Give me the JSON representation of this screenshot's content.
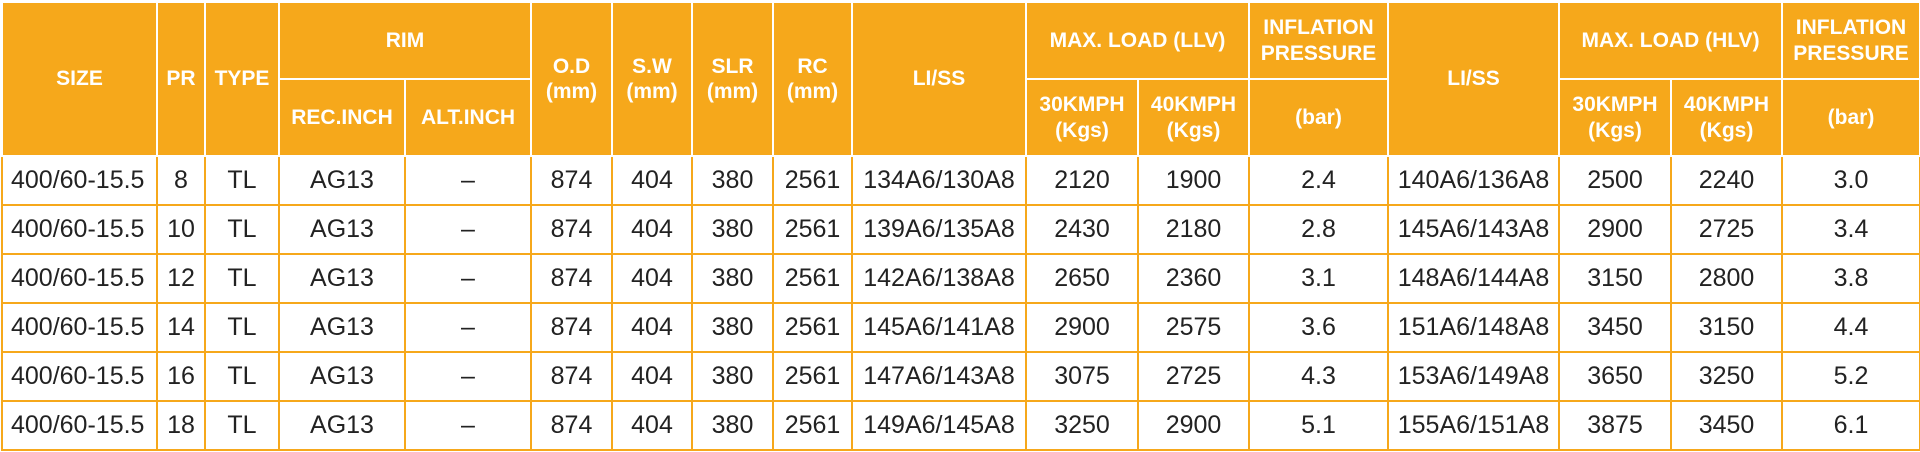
{
  "headers": {
    "size": "SIZE",
    "pr": "PR",
    "type": "TYPE",
    "rim": "RIM",
    "rec_inch": "REC.INCH",
    "alt_inch": "ALT.INCH",
    "od": [
      "O.D",
      "(mm)"
    ],
    "sw": [
      "S.W",
      "(mm)"
    ],
    "slr": [
      "SLR",
      "(mm)"
    ],
    "rc": [
      "RC",
      "(mm)"
    ],
    "li_ss_llv": "LI/SS",
    "max_load_llv": "MAX. LOAD (LLV)",
    "llv_30": [
      "30KMPH",
      "(Kgs)"
    ],
    "llv_40": [
      "40KMPH",
      "(Kgs)"
    ],
    "inflation_llv": [
      "INFLATION",
      "PRESSURE"
    ],
    "bar_llv": "(bar)",
    "li_ss_hlv": "LI/SS",
    "max_load_hlv": "MAX. LOAD (HLV)",
    "hlv_30": [
      "30KMPH",
      "(Kgs)"
    ],
    "hlv_40": [
      "40KMPH",
      "(Kgs)"
    ],
    "inflation_hlv": [
      "INFLATION",
      "PRESSURE"
    ],
    "bar_hlv": "(bar)"
  },
  "rows": [
    [
      "400/60-15.5",
      "8",
      "TL",
      "AG13",
      "–",
      "874",
      "404",
      "380",
      "2561",
      "134A6/130A8",
      "2120",
      "1900",
      "2.4",
      "140A6/136A8",
      "2500",
      "2240",
      "3.0"
    ],
    [
      "400/60-15.5",
      "10",
      "TL",
      "AG13",
      "–",
      "874",
      "404",
      "380",
      "2561",
      "139A6/135A8",
      "2430",
      "2180",
      "2.8",
      "145A6/143A8",
      "2900",
      "2725",
      "3.4"
    ],
    [
      "400/60-15.5",
      "12",
      "TL",
      "AG13",
      "–",
      "874",
      "404",
      "380",
      "2561",
      "142A6/138A8",
      "2650",
      "2360",
      "3.1",
      "148A6/144A8",
      "3150",
      "2800",
      "3.8"
    ],
    [
      "400/60-15.5",
      "14",
      "TL",
      "AG13",
      "–",
      "874",
      "404",
      "380",
      "2561",
      "145A6/141A8",
      "2900",
      "2575",
      "3.6",
      "151A6/148A8",
      "3450",
      "3150",
      "4.4"
    ],
    [
      "400/60-15.5",
      "16",
      "TL",
      "AG13",
      "–",
      "874",
      "404",
      "380",
      "2561",
      "147A6/143A8",
      "3075",
      "2725",
      "4.3",
      "153A6/149A8",
      "3650",
      "3250",
      "5.2"
    ],
    [
      "400/60-15.5",
      "18",
      "TL",
      "AG13",
      "–",
      "874",
      "404",
      "380",
      "2561",
      "149A6/145A8",
      "3250",
      "2900",
      "5.1",
      "155A6/151A8",
      "3875",
      "3450",
      "6.1"
    ]
  ]
}
